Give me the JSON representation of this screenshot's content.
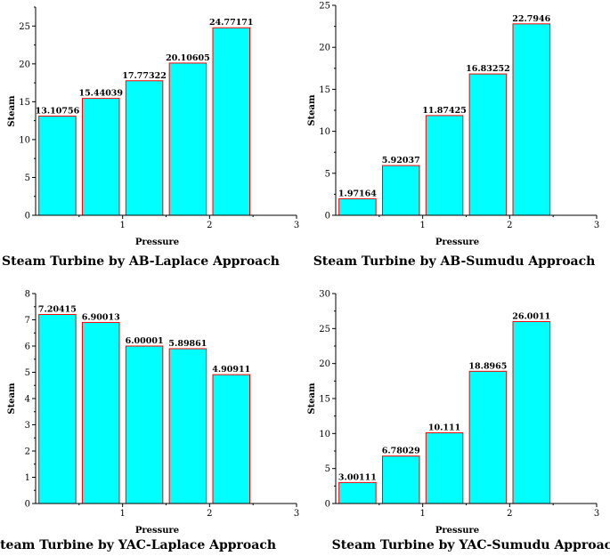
{
  "chart_data": [
    {
      "type": "bar",
      "title": "Steam Turbine by AB-Laplace Approach",
      "xlabel": "Pressure",
      "ylabel": "Steam",
      "values": [
        13.10756,
        15.44039,
        17.77322,
        20.10605,
        24.77171
      ],
      "value_labels": [
        "13.10756",
        "15.44039",
        "17.77322",
        "20.10605",
        "24.77171"
      ],
      "xlim": [
        0,
        3
      ],
      "x_ticks": [
        1,
        2,
        3
      ],
      "ylim": [
        0,
        27.5
      ],
      "y_ticks": [
        0,
        5,
        10,
        15,
        20,
        25
      ],
      "bar_color": "#00ffff",
      "bar_edge_color": "#ff0000"
    },
    {
      "type": "bar",
      "title": "Steam Turbine by AB-Sumudu Approach",
      "xlabel": "Pressure",
      "ylabel": "Steam",
      "values": [
        1.97164,
        5.92037,
        11.87425,
        16.83252,
        22.7946
      ],
      "value_labels": [
        "1.97164",
        "5.92037",
        "11.87425",
        "16.83252",
        "22.7946"
      ],
      "xlim": [
        0,
        3
      ],
      "x_ticks": [
        1,
        2,
        3
      ],
      "ylim": [
        0,
        25
      ],
      "y_ticks": [
        0,
        5,
        10,
        15,
        20,
        25
      ],
      "bar_color": "#00ffff",
      "bar_edge_color": "#ff0000"
    },
    {
      "type": "bar",
      "title": "Steam Turbine by YAC-Laplace Approach",
      "xlabel": "Pressure",
      "ylabel": "Steam",
      "values": [
        7.20415,
        6.90013,
        6.00001,
        5.89861,
        4.90911
      ],
      "value_labels": [
        "7.20415",
        "6.90013",
        "6.00001",
        "5.89861",
        "4.90911"
      ],
      "xlim": [
        0,
        3
      ],
      "x_ticks": [
        1,
        2,
        3
      ],
      "ylim": [
        0,
        8
      ],
      "y_ticks": [
        0,
        1,
        2,
        3,
        4,
        5,
        6,
        7,
        8
      ],
      "bar_color": "#00ffff",
      "bar_edge_color": "#ff0000"
    },
    {
      "type": "bar",
      "title": "Steam Turbine by YAC-Sumudu Approach",
      "xlabel": "Pressure",
      "ylabel": "Steam",
      "values": [
        3.00111,
        6.78029,
        10.111,
        18.8965,
        26.0011
      ],
      "value_labels": [
        "3.00111",
        "6.78029",
        "10.111",
        "18.8965",
        "26.0011"
      ],
      "xlim": [
        0,
        3
      ],
      "x_ticks": [
        1,
        2,
        3
      ],
      "ylim": [
        0,
        30
      ],
      "y_ticks": [
        0,
        5,
        10,
        15,
        20,
        25,
        30
      ],
      "bar_color": "#00ffff",
      "bar_edge_color": "#ff0000"
    }
  ]
}
